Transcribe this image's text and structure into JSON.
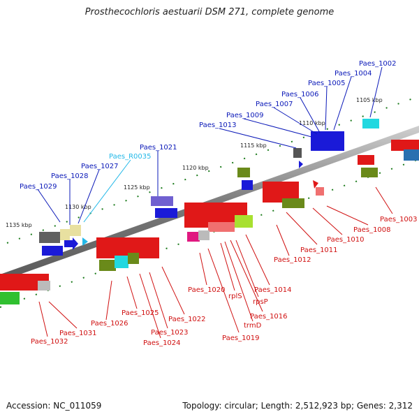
{
  "header": {
    "title": "Prosthecochloris aestuarii DSM 271, complete genome"
  },
  "footer": {
    "accession": "Accession: NC_011059",
    "topology": "Topology: circular; Length: 2,512,923 bp; Genes: 2,312"
  },
  "kbp_labels": [
    "1105 kbp",
    "1110 kbp",
    "1115 kbp",
    "1120 kbp",
    "1125 kbp",
    "1130 kbp",
    "1135 kbp"
  ],
  "genes_top": [
    "Paes_1002",
    "Paes_1004",
    "Paes_1005",
    "Paes_1006",
    "Paes_1007",
    "Paes_1009",
    "Paes_1013",
    "Paes_1021",
    "Paes_R0035",
    "Paes_1027",
    "Paes_1028",
    "Paes_1029"
  ],
  "genes_bottom": [
    "Paes_1003",
    "Paes_1008",
    "Paes_1010",
    "Paes_1011",
    "Paes_1012",
    "Paes_1014",
    "rpsP",
    "Paes_1016",
    "trmD",
    "rplS",
    "Paes_1019",
    "Paes_1020",
    "Paes_1022",
    "Paes_1023",
    "Paes_1024",
    "Paes_1025",
    "Paes_1026",
    "Paes_1031",
    "Paes_1032"
  ],
  "colors": {
    "backbone": "#8a8a8a",
    "label_blue": "#0a18b8",
    "label_cyan": "#22b8e8",
    "label_red": "#d01010",
    "tick_green": "#1a7a1a"
  }
}
